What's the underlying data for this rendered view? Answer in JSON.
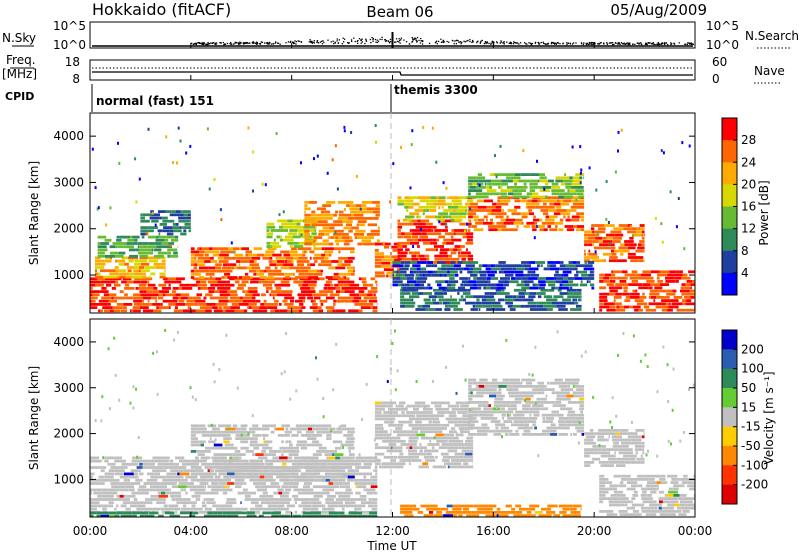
{
  "header": {
    "station": "Hokkaido (fitACF)",
    "beam": "Beam 06",
    "date": "05/Aug/2009"
  },
  "side_labels": {
    "nsky": "N.Sky",
    "freq": "Freq.",
    "freq_unit": "[MHz]",
    "cpid": "CPID",
    "nsearch": "N.Search",
    "nave": "Nave"
  },
  "noise_panel": {
    "left_ticks": [
      "10^5",
      "10^0"
    ],
    "right_ticks": [
      "10^5",
      "10^0"
    ]
  },
  "freq_panel": {
    "left_ticks": [
      "18",
      "8"
    ],
    "right_ticks": [
      "60",
      "0"
    ]
  },
  "cpid_panel": {
    "segments": [
      {
        "label": "normal (fast) 151",
        "start_hour": 0
      },
      {
        "label": "themis 3300",
        "start_hour": 12
      }
    ]
  },
  "time_axis": {
    "xlabel": "Time UT",
    "ticks": [
      "00:00",
      "04:00",
      "08:00",
      "12:00",
      "16:00",
      "20:00",
      "00:00"
    ]
  },
  "power_panel": {
    "ylabel": "Slant Range [km]",
    "yticks": [
      "1000",
      "2000",
      "3000",
      "4000"
    ],
    "colorbar_label": "Power [dB]",
    "colorbar_ticks": [
      "28",
      "24",
      "20",
      "16",
      "12",
      "8",
      "4"
    ],
    "colorbar_colors": [
      "#ff0000",
      "#ff6600",
      "#ffaa00",
      "#d8d800",
      "#66bb33",
      "#2f8a5a",
      "#1e3fa0",
      "#0000ff"
    ]
  },
  "velocity_panel": {
    "ylabel": "Slant Range [km]",
    "yticks": [
      "1000",
      "2000",
      "3000",
      "4000"
    ],
    "colorbar_label": "Velocity [m s⁻¹]",
    "colorbar_ticks": [
      "200",
      "100",
      "50",
      "15",
      "-15",
      "-50",
      "-100",
      "-200"
    ],
    "colorbar_colors": [
      "#0000cc",
      "#2a5cb0",
      "#2f8a5a",
      "#66cc33",
      "#c0c0c0",
      "#ffcc00",
      "#ff8800",
      "#ff3300",
      "#dd0000"
    ]
  },
  "chart_data": {
    "type": "heatmap",
    "x_range_hours": [
      0,
      24
    ],
    "y_range_km": [
      180,
      4500
    ],
    "power_regions": [
      {
        "t0": 0.0,
        "t1": 11.4,
        "r0": 250,
        "r1": 950,
        "level": 28
      },
      {
        "t0": 0.2,
        "t1": 3.0,
        "r0": 950,
        "r1": 1400,
        "level": 22
      },
      {
        "t0": 0.3,
        "t1": 3.5,
        "r0": 1400,
        "r1": 1850,
        "level": 12
      },
      {
        "t0": 2.0,
        "t1": 4.0,
        "r0": 1850,
        "r1": 2400,
        "level": 8
      },
      {
        "t0": 4.0,
        "t1": 10.5,
        "r0": 950,
        "r1": 1600,
        "level": 26
      },
      {
        "t0": 7.0,
        "t1": 9.0,
        "r0": 1600,
        "r1": 2200,
        "level": 16
      },
      {
        "t0": 8.5,
        "t1": 11.5,
        "r0": 1700,
        "r1": 2600,
        "level": 24
      },
      {
        "t0": 11.3,
        "t1": 12.3,
        "r0": 950,
        "r1": 1700,
        "level": 26
      },
      {
        "t0": 12.2,
        "t1": 15.2,
        "r0": 1300,
        "r1": 2200,
        "level": 28
      },
      {
        "t0": 12.2,
        "t1": 15.2,
        "r0": 2200,
        "r1": 2700,
        "level": 18
      },
      {
        "t0": 15.0,
        "t1": 19.6,
        "r0": 2000,
        "r1": 2700,
        "level": 26
      },
      {
        "t0": 15.0,
        "t1": 19.6,
        "r0": 2700,
        "r1": 3200,
        "level": 14
      },
      {
        "t0": 19.6,
        "t1": 22.0,
        "r0": 1300,
        "r1": 2100,
        "level": 26
      },
      {
        "t0": 20.2,
        "t1": 24.0,
        "r0": 250,
        "r1": 1100,
        "level": 28
      },
      {
        "t0": 12.3,
        "t1": 19.5,
        "r0": 250,
        "r1": 700,
        "level": 8
      },
      {
        "t0": 12.0,
        "t1": 20.0,
        "r0": 700,
        "r1": 1300,
        "level": 6
      }
    ],
    "velocity_regions": [
      {
        "t0": 0.0,
        "t1": 11.4,
        "r0": 250,
        "r1": 1500,
        "level": 0
      },
      {
        "t0": 0.0,
        "t1": 11.4,
        "r0": 180,
        "r1": 300,
        "level": 40
      },
      {
        "t0": 4.0,
        "t1": 10.5,
        "r0": 950,
        "r1": 2200,
        "level": 0
      },
      {
        "t0": 11.3,
        "t1": 15.2,
        "r0": 1300,
        "r1": 2700,
        "level": 0
      },
      {
        "t0": 15.0,
        "t1": 19.6,
        "r0": 2000,
        "r1": 3200,
        "level": 0
      },
      {
        "t0": 19.6,
        "t1": 22.0,
        "r0": 1300,
        "r1": 2100,
        "level": 0
      },
      {
        "t0": 20.2,
        "t1": 24.0,
        "r0": 250,
        "r1": 1100,
        "level": 0
      },
      {
        "t0": 12.3,
        "t1": 19.5,
        "r0": 180,
        "r1": 450,
        "level": -40
      }
    ]
  }
}
